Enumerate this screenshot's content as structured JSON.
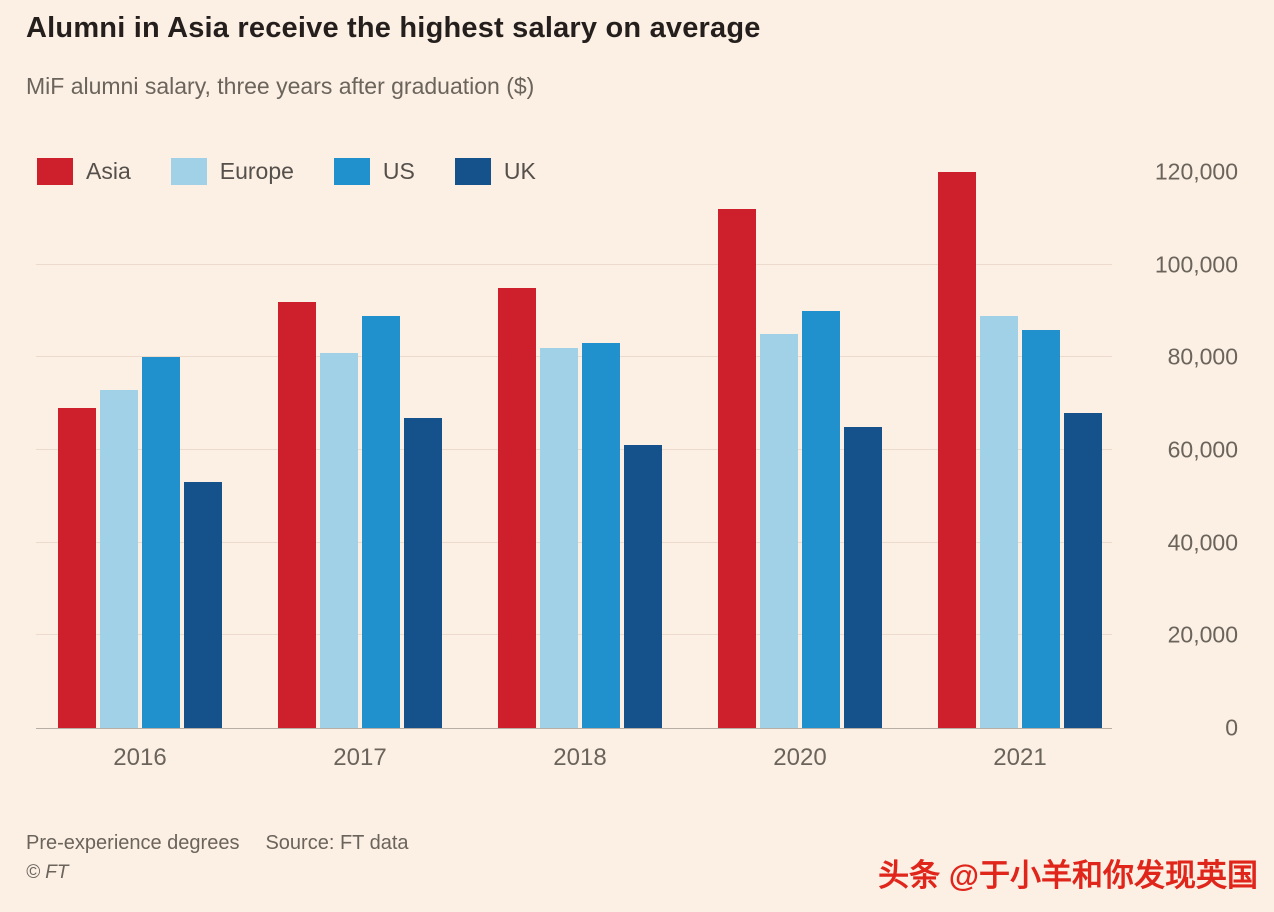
{
  "header": {
    "title": "Alumni in Asia receive the highest salary on average",
    "subtitle": "MiF alumni salary, three years after graduation ($)"
  },
  "chart_data": {
    "type": "bar",
    "title": "Alumni in Asia receive the highest salary on average",
    "subtitle": "MiF alumni salary, three years after graduation ($)",
    "categories": [
      "2016",
      "2017",
      "2018",
      "2020",
      "2021"
    ],
    "series": [
      {
        "name": "Asia",
        "color": "#cd202c",
        "values": [
          69000,
          92000,
          95000,
          112000,
          120000
        ]
      },
      {
        "name": "Europe",
        "color": "#a0d1e6",
        "values": [
          73000,
          81000,
          82000,
          85000,
          89000
        ]
      },
      {
        "name": "US",
        "color": "#2091cd",
        "values": [
          80000,
          89000,
          83000,
          90000,
          86000
        ]
      },
      {
        "name": "UK",
        "color": "#15528c",
        "values": [
          53000,
          67000,
          61000,
          65000,
          68000
        ]
      }
    ],
    "xlabel": "",
    "ylabel": "",
    "ylim": [
      0,
      120000
    ],
    "y_ticks": [
      120000,
      100000,
      80000,
      60000,
      40000,
      20000,
      0
    ],
    "y_tick_labels": [
      "120,000",
      "100,000",
      "80,000",
      "60,000",
      "40,000",
      "20,000",
      "0"
    ],
    "grid": "horizontal",
    "legend_position": "top-left",
    "y_axis_side": "right"
  },
  "footer": {
    "note": "Pre-experience degrees",
    "source": "Source: FT data",
    "copyright": "© FT"
  },
  "watermark": {
    "text": "头条 @于小羊和你发现英国",
    "color": "#e0251b"
  },
  "colors": {
    "background": "#fcefe4",
    "title_text": "#241f1c",
    "secondary_text": "#6b645b",
    "gridline": "#ecdbcc",
    "baseline": "#b7aea5"
  }
}
